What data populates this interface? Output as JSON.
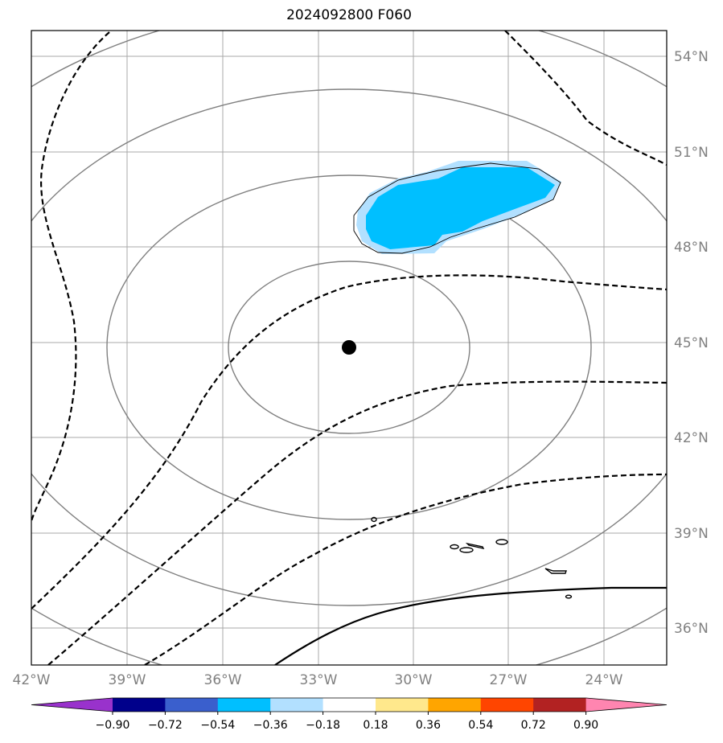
{
  "title": "2024092800 F060",
  "map": {
    "lon_labels": [
      "42°W",
      "39°W",
      "36°W",
      "33°W",
      "30°W",
      "27°W",
      "24°W"
    ],
    "lat_labels": [
      "54°N",
      "51°N",
      "48°N",
      "45°N",
      "42°N",
      "39°N",
      "36°N"
    ],
    "storm_center": {
      "lon": "32°W",
      "lat": "45°N"
    }
  },
  "colorbar": {
    "ticks": [
      "−0.90",
      "−0.72",
      "−0.54",
      "−0.36",
      "−0.18",
      "0.18",
      "0.36",
      "0.54",
      "0.72",
      "0.90"
    ],
    "colors": [
      "#9932cc",
      "#00008b",
      "#3a5fcd",
      "#00bfff",
      "#b2e0ff",
      "#ffffff",
      "#ffe88c",
      "#ffa500",
      "#ff4500",
      "#b22222",
      "#ff85b0"
    ]
  },
  "colors": {
    "grid": "#a9a9a9",
    "range_rings": "#808080",
    "shade_strong": "#00bfff",
    "shade_light": "#b2e0ff"
  }
}
